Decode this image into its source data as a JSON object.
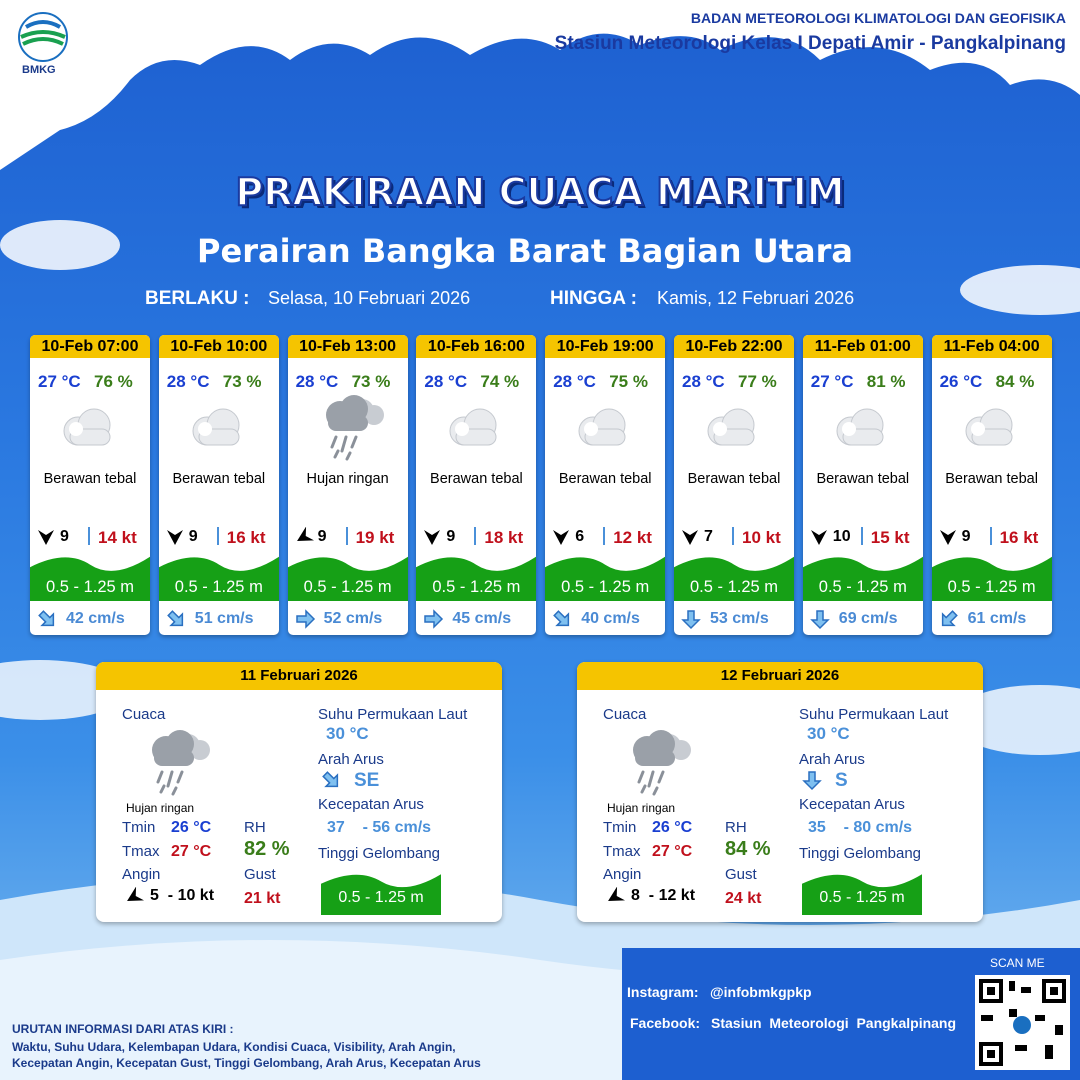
{
  "header": {
    "logo": "BMKG",
    "org": "BADAN METEOROLOGI KLIMATOLOGI DAN GEOFISIKA",
    "station": "Stasiun Meteorologi Kelas I Depati Amir - Pangkalpinang"
  },
  "title": "PRAKIRAAN CUACA MARITIM",
  "subtitle": "Perairan Bangka Barat Bagian Utara",
  "validity": {
    "from_label": "BERLAKU :",
    "from": "Selasa, 10 Februari 2026",
    "to_label": "HINGGA :",
    "to": "Kamis, 12 Februari 2026"
  },
  "forecasts": [
    {
      "time": "10-Feb 07:00",
      "temp": "27 °C",
      "rh": "76 %",
      "weather": "Berawan tebal",
      "wind": "9",
      "gust": "14 kt",
      "wave": "0.5 - 1.25 m",
      "current": "42 cm/s"
    },
    {
      "time": "10-Feb 10:00",
      "temp": "28 °C",
      "rh": "73 %",
      "weather": "Berawan tebal",
      "wind": "9",
      "gust": "16 kt",
      "wave": "0.5 - 1.25 m",
      "current": "51 cm/s"
    },
    {
      "time": "10-Feb 13:00",
      "temp": "28 °C",
      "rh": "73 %",
      "weather": "Hujan ringan",
      "wind": "9",
      "gust": "19 kt",
      "wave": "0.5 - 1.25 m",
      "current": "52 cm/s"
    },
    {
      "time": "10-Feb 16:00",
      "temp": "28 °C",
      "rh": "74 %",
      "weather": "Berawan tebal",
      "wind": "9",
      "gust": "18 kt",
      "wave": "0.5 - 1.25 m",
      "current": "45 cm/s"
    },
    {
      "time": "10-Feb 19:00",
      "temp": "28 °C",
      "rh": "75 %",
      "weather": "Berawan tebal",
      "wind": "6",
      "gust": "12 kt",
      "wave": "0.5 - 1.25 m",
      "current": "40 cm/s"
    },
    {
      "time": "10-Feb 22:00",
      "temp": "28 °C",
      "rh": "77 %",
      "weather": "Berawan tebal",
      "wind": "7",
      "gust": "10 kt",
      "wave": "0.5 - 1.25 m",
      "current": "53 cm/s"
    },
    {
      "time": "11-Feb 01:00",
      "temp": "27 °C",
      "rh": "81 %",
      "weather": "Berawan tebal",
      "wind": "10",
      "gust": "15 kt",
      "wave": "0.5 - 1.25 m",
      "current": "69 cm/s"
    },
    {
      "time": "11-Feb 04:00",
      "temp": "26 °C",
      "rh": "84 %",
      "weather": "Berawan tebal",
      "wind": "9",
      "gust": "16 kt",
      "wave": "0.5 - 1.25 m",
      "current": "61 cm/s"
    }
  ],
  "daily": [
    {
      "date": "11 Februari 2026",
      "weather_label": "Cuaca",
      "weather": "Hujan ringan",
      "tmin_label": "Tmin",
      "tmin": "26 °C",
      "tmax_label": "Tmax",
      "tmax": "27 °C",
      "rh_label": "RH",
      "rh": "82 %",
      "wind_label": "Angin",
      "wind": "5  - 10 kt",
      "gust_label": "Gust",
      "gust": "21 kt",
      "sst_label": "Suhu Permukaan Laut",
      "sst": "30 °C",
      "current_dir_label": "Arah Arus",
      "current_dir": "SE",
      "current_speed_label": "Kecepatan Arus",
      "current_speed": "37    - 56 cm/s",
      "wave_label": "Tinggi Gelombang",
      "wave": "0.5 - 1.25 m"
    },
    {
      "date": "12 Februari 2026",
      "weather_label": "Cuaca",
      "weather": "Hujan ringan",
      "tmin_label": "Tmin",
      "tmin": "26 °C",
      "tmax_label": "Tmax",
      "tmax": "27 °C",
      "rh_label": "RH",
      "rh": "84 %",
      "wind_label": "Angin",
      "wind": "8  - 12 kt",
      "gust_label": "Gust",
      "gust": "24 kt",
      "sst_label": "Suhu Permukaan Laut",
      "sst": "30 °C",
      "current_dir_label": "Arah Arus",
      "current_dir": "S",
      "current_speed_label": "Kecepatan Arus",
      "current_speed": "35    - 80 cm/s",
      "wave_label": "Tinggi Gelombang",
      "wave": "0.5 - 1.25 m"
    }
  ],
  "footer": {
    "info_title": "URUTAN INFORMASI DARI ATAS KIRI :",
    "info_lines": [
      "Waktu, Suhu Udara, Kelembapan Udara, Kondisi Cuaca, Visibility, Arah Angin,",
      "Kecepatan Angin, Kecepatan Gust, Tinggi Gelombang, Arah Arus, Kecepatan Arus"
    ],
    "instagram_label": "Instagram:",
    "instagram": "@infobmkgpkp",
    "facebook_label": "Facebook:",
    "facebook": "Stasiun  Meteorologi  Pangkalpinang",
    "scan": "SCAN ME"
  }
}
